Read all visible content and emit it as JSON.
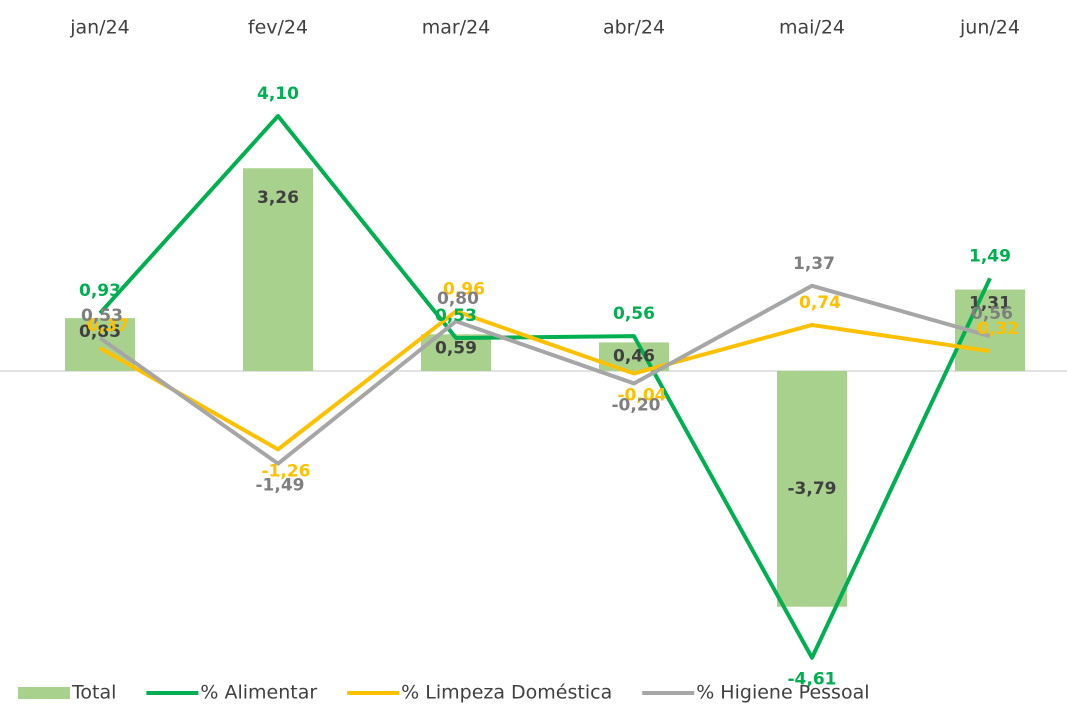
{
  "chart_data": {
    "type": "bar-line",
    "categories": [
      "jan/24",
      "fev/24",
      "mar/24",
      "abr/24",
      "mai/24",
      "jun/24"
    ],
    "ylim": [
      -5,
      5
    ],
    "legend": "bottom",
    "series": [
      {
        "name": "Total",
        "type": "bar",
        "color": "#a9d18e",
        "label_color": "#404040",
        "values": [
          0.85,
          3.26,
          0.59,
          0.46,
          -3.79,
          1.31
        ],
        "value_labels": [
          "0,85",
          "3,26",
          "0,59",
          "0,46",
          "-3,79",
          "1,31"
        ]
      },
      {
        "name": "% Alimentar",
        "type": "line",
        "color": "#00b050",
        "label_color": "#00b050",
        "values": [
          0.93,
          4.1,
          0.53,
          0.56,
          -4.61,
          1.49
        ],
        "value_labels": [
          "0,93",
          "4,10",
          "0,53",
          "0,56",
          "-4,61",
          "1,49"
        ]
      },
      {
        "name": "% Limpeza Doméstica",
        "type": "line",
        "color": "#ffc000",
        "label_color": "#ffc000",
        "values": [
          0.37,
          -1.26,
          0.96,
          -0.04,
          0.74,
          0.32
        ],
        "value_labels": [
          "0,37",
          "-1,26",
          "0,96",
          "-0,04",
          "0,74",
          "0,32"
        ]
      },
      {
        "name": "% Higiene Pessoal",
        "type": "line",
        "color": "#a6a6a6",
        "label_color": "#7f7f7f",
        "values": [
          0.53,
          -1.49,
          0.8,
          -0.2,
          1.37,
          0.56
        ],
        "value_labels": [
          "0,53",
          "-1,49",
          "0,80",
          "-0,20",
          "1,37",
          "0,56"
        ]
      }
    ]
  }
}
